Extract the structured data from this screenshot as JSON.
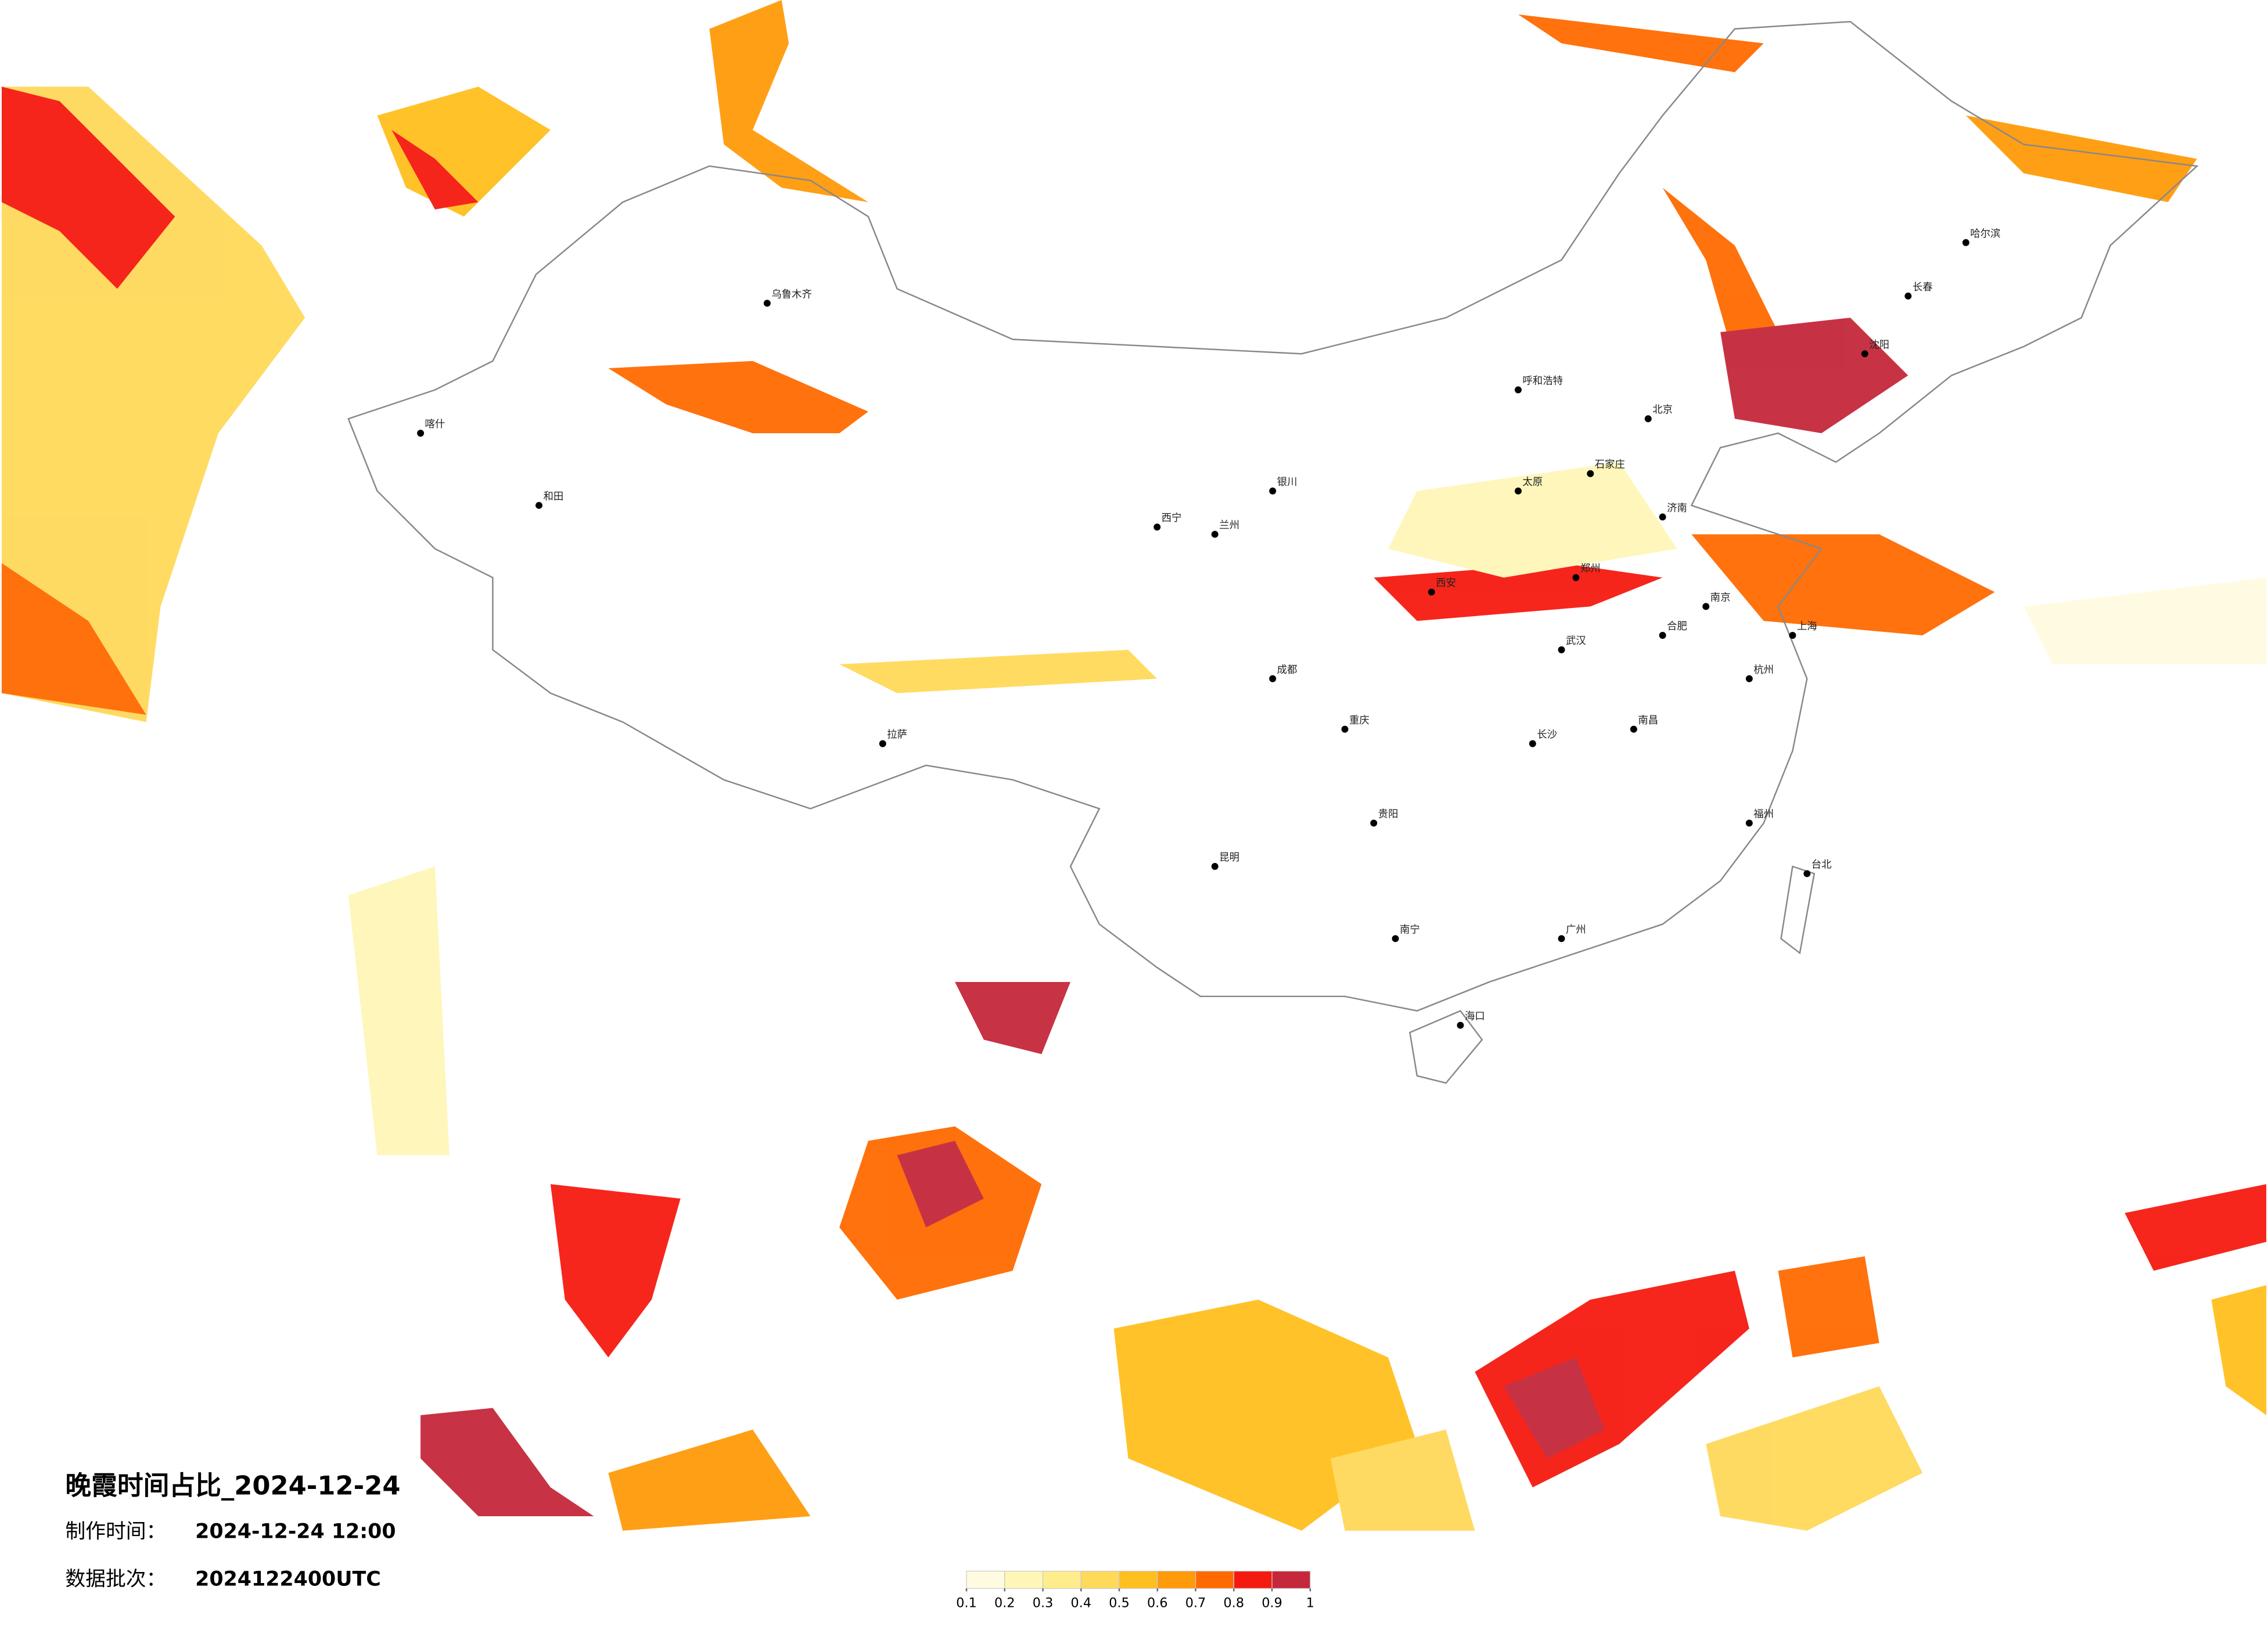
{
  "title": "晚霞时间占比_2024-12-24",
  "made_label": "制作时间：",
  "made_value": "2024-12-24 12:00",
  "batch_label": "数据批次：",
  "batch_value": "2024122400UTC",
  "legend": {
    "ticks": [
      0.1,
      0.2,
      0.3,
      0.4,
      0.5,
      0.6,
      0.7,
      0.8,
      0.9,
      1
    ],
    "colors": [
      "#fffbe0",
      "#fff6b8",
      "#ffec8c",
      "#ffd95a",
      "#ffbf1e",
      "#ff9a0a",
      "#ff6a00",
      "#f51a10",
      "#c4283a"
    ]
  },
  "cities": [
    "哈尔滨",
    "长春",
    "沈阳",
    "呼和浩特",
    "北京",
    "石家庄",
    "太原",
    "济南",
    "郑州",
    "西安",
    "兰州",
    "西宁",
    "银川",
    "乌鲁木齐",
    "拉萨",
    "成都",
    "重庆",
    "武汉",
    "南京",
    "上海",
    "杭州",
    "合肥",
    "长沙",
    "南昌",
    "福州",
    "贵阳",
    "昆明",
    "南宁",
    "广州",
    "海口",
    "台北",
    "喀什",
    "和田"
  ]
}
